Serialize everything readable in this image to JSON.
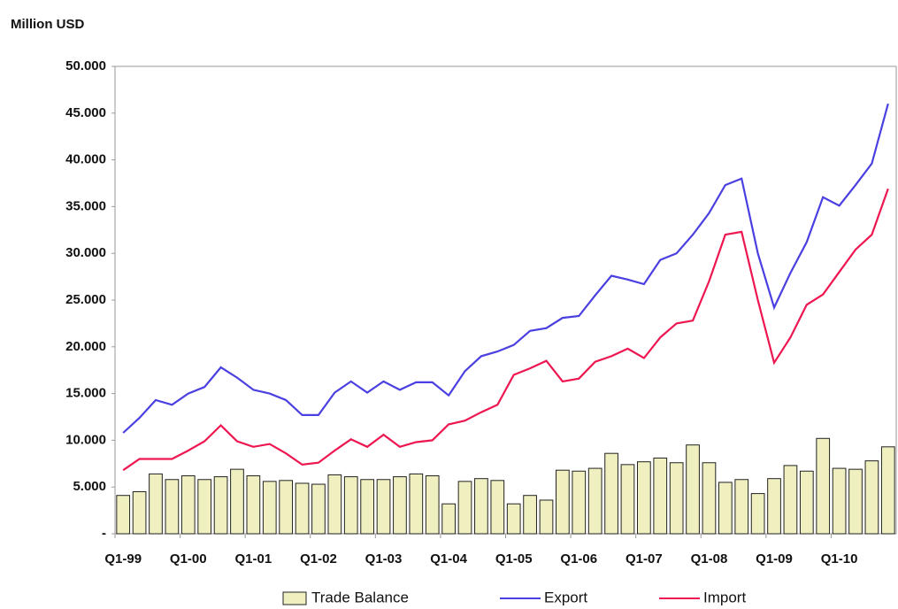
{
  "chart_data": {
    "type": "combo",
    "y_label": "Million USD",
    "categories": [
      "Q1-99",
      null,
      null,
      null,
      "Q1-00",
      null,
      null,
      null,
      "Q1-01",
      null,
      null,
      null,
      "Q1-02",
      null,
      null,
      null,
      "Q1-03",
      null,
      null,
      null,
      "Q1-04",
      null,
      null,
      null,
      "Q1-05",
      null,
      null,
      null,
      "Q1-06",
      null,
      null,
      null,
      "Q1-07",
      null,
      null,
      null,
      "Q1-08",
      null,
      null,
      null,
      "Q1-09",
      null,
      null,
      null,
      "Q1-10",
      null,
      null,
      null
    ],
    "series": [
      {
        "name": "Trade Balance",
        "type": "bar",
        "color": "#efefbf",
        "values": [
          4100,
          4500,
          6400,
          5800,
          6200,
          5800,
          6100,
          6900,
          6200,
          5600,
          5700,
          5400,
          5300,
          6300,
          6100,
          5800,
          5800,
          6100,
          6400,
          6200,
          3200,
          5600,
          5900,
          5700,
          3200,
          4100,
          3600,
          6800,
          6700,
          7000,
          8600,
          7400,
          7700,
          8100,
          7600,
          9500,
          7600,
          5500,
          5800,
          4300,
          5900,
          7300,
          6700,
          10200,
          7000,
          6900,
          7800,
          9300
        ]
      },
      {
        "name": "Export",
        "type": "line",
        "color": "#4a3fe0",
        "values": [
          10800,
          12400,
          14300,
          13800,
          15000,
          15700,
          17800,
          16700,
          15400,
          15000,
          14300,
          12700,
          12700,
          15100,
          16300,
          15100,
          16300,
          15400,
          16200,
          16200,
          14800,
          17400,
          19000,
          19500,
          20200,
          21700,
          22000,
          23100,
          23300,
          25500,
          27600,
          27200,
          26700,
          29300,
          30000,
          32000,
          34300,
          37300,
          38000,
          30000,
          24200,
          27900,
          31200,
          36000,
          35100,
          37300,
          39600,
          46000
        ]
      },
      {
        "name": "Import",
        "type": "line",
        "color": "#ee1650",
        "values": [
          6800,
          8000,
          8000,
          8000,
          8900,
          9900,
          11600,
          9900,
          9300,
          9600,
          8600,
          7400,
          7600,
          8900,
          10100,
          9300,
          10600,
          9300,
          9800,
          10000,
          11700,
          12100,
          13000,
          13800,
          17000,
          17700,
          18500,
          16300,
          16600,
          18400,
          19000,
          19800,
          18800,
          21000,
          22500,
          22800,
          27000,
          32000,
          32300,
          25000,
          18300,
          21000,
          24500,
          25600,
          28000,
          30400,
          32000,
          36900
        ]
      }
    ],
    "ylim": [
      0,
      50000
    ],
    "yticks": [
      {
        "value": 0,
        "label": "-"
      },
      {
        "value": 5000,
        "label": "5.000"
      },
      {
        "value": 10000,
        "label": "10.000"
      },
      {
        "value": 15000,
        "label": "15.000"
      },
      {
        "value": 20000,
        "label": "20.000"
      },
      {
        "value": 25000,
        "label": "25.000"
      },
      {
        "value": 30000,
        "label": "30.000"
      },
      {
        "value": 35000,
        "label": "35.000"
      },
      {
        "value": 40000,
        "label": "40.000"
      },
      {
        "value": 45000,
        "label": "45.000"
      },
      {
        "value": 50000,
        "label": "50.000"
      }
    ],
    "grid": false
  }
}
